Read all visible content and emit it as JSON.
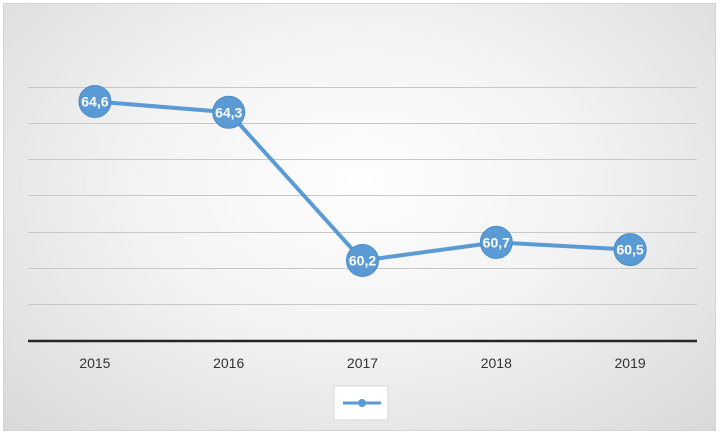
{
  "chart_data": {
    "type": "line",
    "title": "",
    "xlabel": "",
    "ylabel": "",
    "categories": [
      "2015",
      "2016",
      "2017",
      "2018",
      "2019"
    ],
    "series": [
      {
        "values": [
          64.6,
          64.3,
          60.2,
          60.7,
          60.5
        ],
        "labels": [
          "64,6",
          "64,3",
          "60,2",
          "60,7",
          "60,5"
        ],
        "color": "#5b9bd5"
      }
    ],
    "ylim": [
      58,
      65
    ],
    "y_gridlines": [
      59,
      60,
      61,
      62,
      63,
      64,
      65
    ],
    "grid": true,
    "y_axis_labels_visible": false,
    "legend": "bottom"
  }
}
